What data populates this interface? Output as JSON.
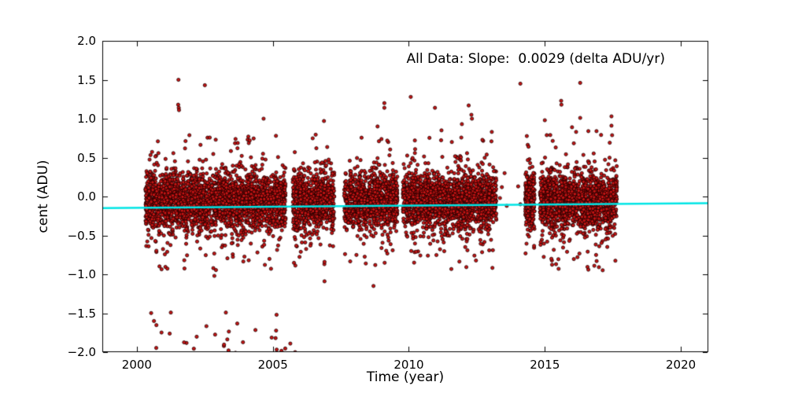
{
  "title_annotation": {
    "text": "All Data: Slope:  0.0029 (delta ADU/yr)"
  },
  "axes": {
    "xlabel": "Time (year)",
    "ylabel": "cent (ADU)",
    "xtick_labels": [
      "2000",
      "2005",
      "2010",
      "2015",
      "2020"
    ],
    "ytick_labels": [
      "2.0",
      "1.5",
      "1.0",
      "0.5",
      "0.0",
      "−0.5",
      "−1.0",
      "−1.5",
      "−2.0"
    ]
  },
  "chart_data": {
    "type": "scatter",
    "title": "All Data: Slope:  0.0029 (delta ADU/yr)",
    "xlabel": "Time (year)",
    "ylabel": "cent (ADU)",
    "xlim": [
      1998.73,
      2021.01
    ],
    "ylim": [
      -2.0,
      2.0
    ],
    "xticks": [
      2000,
      2005,
      2010,
      2015,
      2020
    ],
    "yticks": [
      2.0,
      1.5,
      1.0,
      0.5,
      0.0,
      -0.5,
      -1.0,
      -1.5,
      -2.0
    ],
    "grid": false,
    "legend": null,
    "slope_delta_adu_per_yr": 0.0029,
    "trend_line": {
      "color": "#00e5e5",
      "width": 2.5,
      "x": [
        1998.73,
        2021.01
      ],
      "y": [
        -0.15,
        -0.085
      ]
    },
    "marker": {
      "fill": "#c81414",
      "edge": "#1e0000",
      "radius": 2.1
    },
    "band_clusters": [
      {
        "x_start": 2000.32,
        "x_end": 2005.47,
        "n": 2600
      },
      {
        "x_start": 2005.73,
        "x_end": 2007.26,
        "n": 800
      },
      {
        "x_start": 2007.62,
        "x_end": 2009.58,
        "n": 1020
      },
      {
        "x_start": 2009.78,
        "x_end": 2013.22,
        "n": 1780
      },
      {
        "x_start": 2014.28,
        "x_end": 2014.62,
        "n": 270
      },
      {
        "x_start": 2014.82,
        "x_end": 2017.65,
        "n": 1500
      }
    ],
    "band_profile": {
      "center": -0.06,
      "sd_core": 0.17,
      "sd_wide": 0.3,
      "wide_fraction": 0.2,
      "clip": [
        -0.66,
        0.57
      ],
      "low_tail_fraction": 0.012,
      "low_tail_range": [
        -0.95,
        -0.6
      ],
      "high_tail_fraction": 0.006,
      "high_tail_range": [
        0.57,
        0.8
      ]
    },
    "low_outlier_cluster": {
      "x_start": 2000.35,
      "x_end": 2005.9,
      "n": 30,
      "y_range": [
        -2.03,
        -1.45
      ]
    },
    "sparse_points": [
      [
        2013.42,
        0.12
      ],
      [
        2013.6,
        -0.12
      ],
      [
        2013.35,
        -0.02
      ],
      [
        2014.02,
        0.13
      ],
      [
        2014.1,
        -0.1
      ],
      [
        2013.52,
        0.3
      ]
    ],
    "outliers": [
      [
        2001.53,
        1.5
      ],
      [
        2001.52,
        1.18
      ],
      [
        2001.54,
        1.14
      ],
      [
        2001.55,
        1.11
      ],
      [
        2002.5,
        1.43
      ],
      [
        2002.9,
        0.73
      ],
      [
        2004.66,
        1.0
      ],
      [
        2004.15,
        0.72
      ],
      [
        2003.7,
        0.62
      ],
      [
        2006.88,
        0.97
      ],
      [
        2006.6,
        0.62
      ],
      [
        2009.1,
        1.2
      ],
      [
        2009.1,
        1.14
      ],
      [
        2008.85,
        0.9
      ],
      [
        2008.9,
        0.71
      ],
      [
        2010.07,
        1.28
      ],
      [
        2010.96,
        1.14
      ],
      [
        2011.2,
        0.85
      ],
      [
        2012.2,
        1.17
      ],
      [
        2012.3,
        1.05
      ],
      [
        2012.32,
        1.0
      ],
      [
        2011.95,
        0.93
      ],
      [
        2013.05,
        0.83
      ],
      [
        2014.1,
        1.45
      ],
      [
        2015.6,
        1.23
      ],
      [
        2015.61,
        1.18
      ],
      [
        2016.3,
        1.46
      ],
      [
        2016.3,
        1.01
      ],
      [
        2015.0,
        0.98
      ],
      [
        2017.45,
        1.03
      ],
      [
        2017.45,
        0.91
      ],
      [
        2016.0,
        0.89
      ],
      [
        2016.15,
        0.83
      ],
      [
        2016.6,
        0.84
      ],
      [
        2016.9,
        0.84
      ],
      [
        2015.2,
        0.79
      ],
      [
        2014.4,
        0.64
      ],
      [
        2015.4,
        0.63
      ],
      [
        2002.85,
        -1.02
      ],
      [
        2005.1,
        -1.82
      ],
      [
        2005.82,
        -2.0
      ],
      [
        2006.9,
        -0.84
      ],
      [
        2006.9,
        -1.09
      ],
      [
        2008.7,
        -1.15
      ],
      [
        2010.27,
        -0.71
      ],
      [
        2010.7,
        -0.76
      ],
      [
        2016.2,
        -0.78
      ],
      [
        2016.6,
        -0.94
      ],
      [
        2017.0,
        -0.64
      ],
      [
        2015.9,
        -0.57
      ]
    ],
    "random_seed": 20290
  }
}
